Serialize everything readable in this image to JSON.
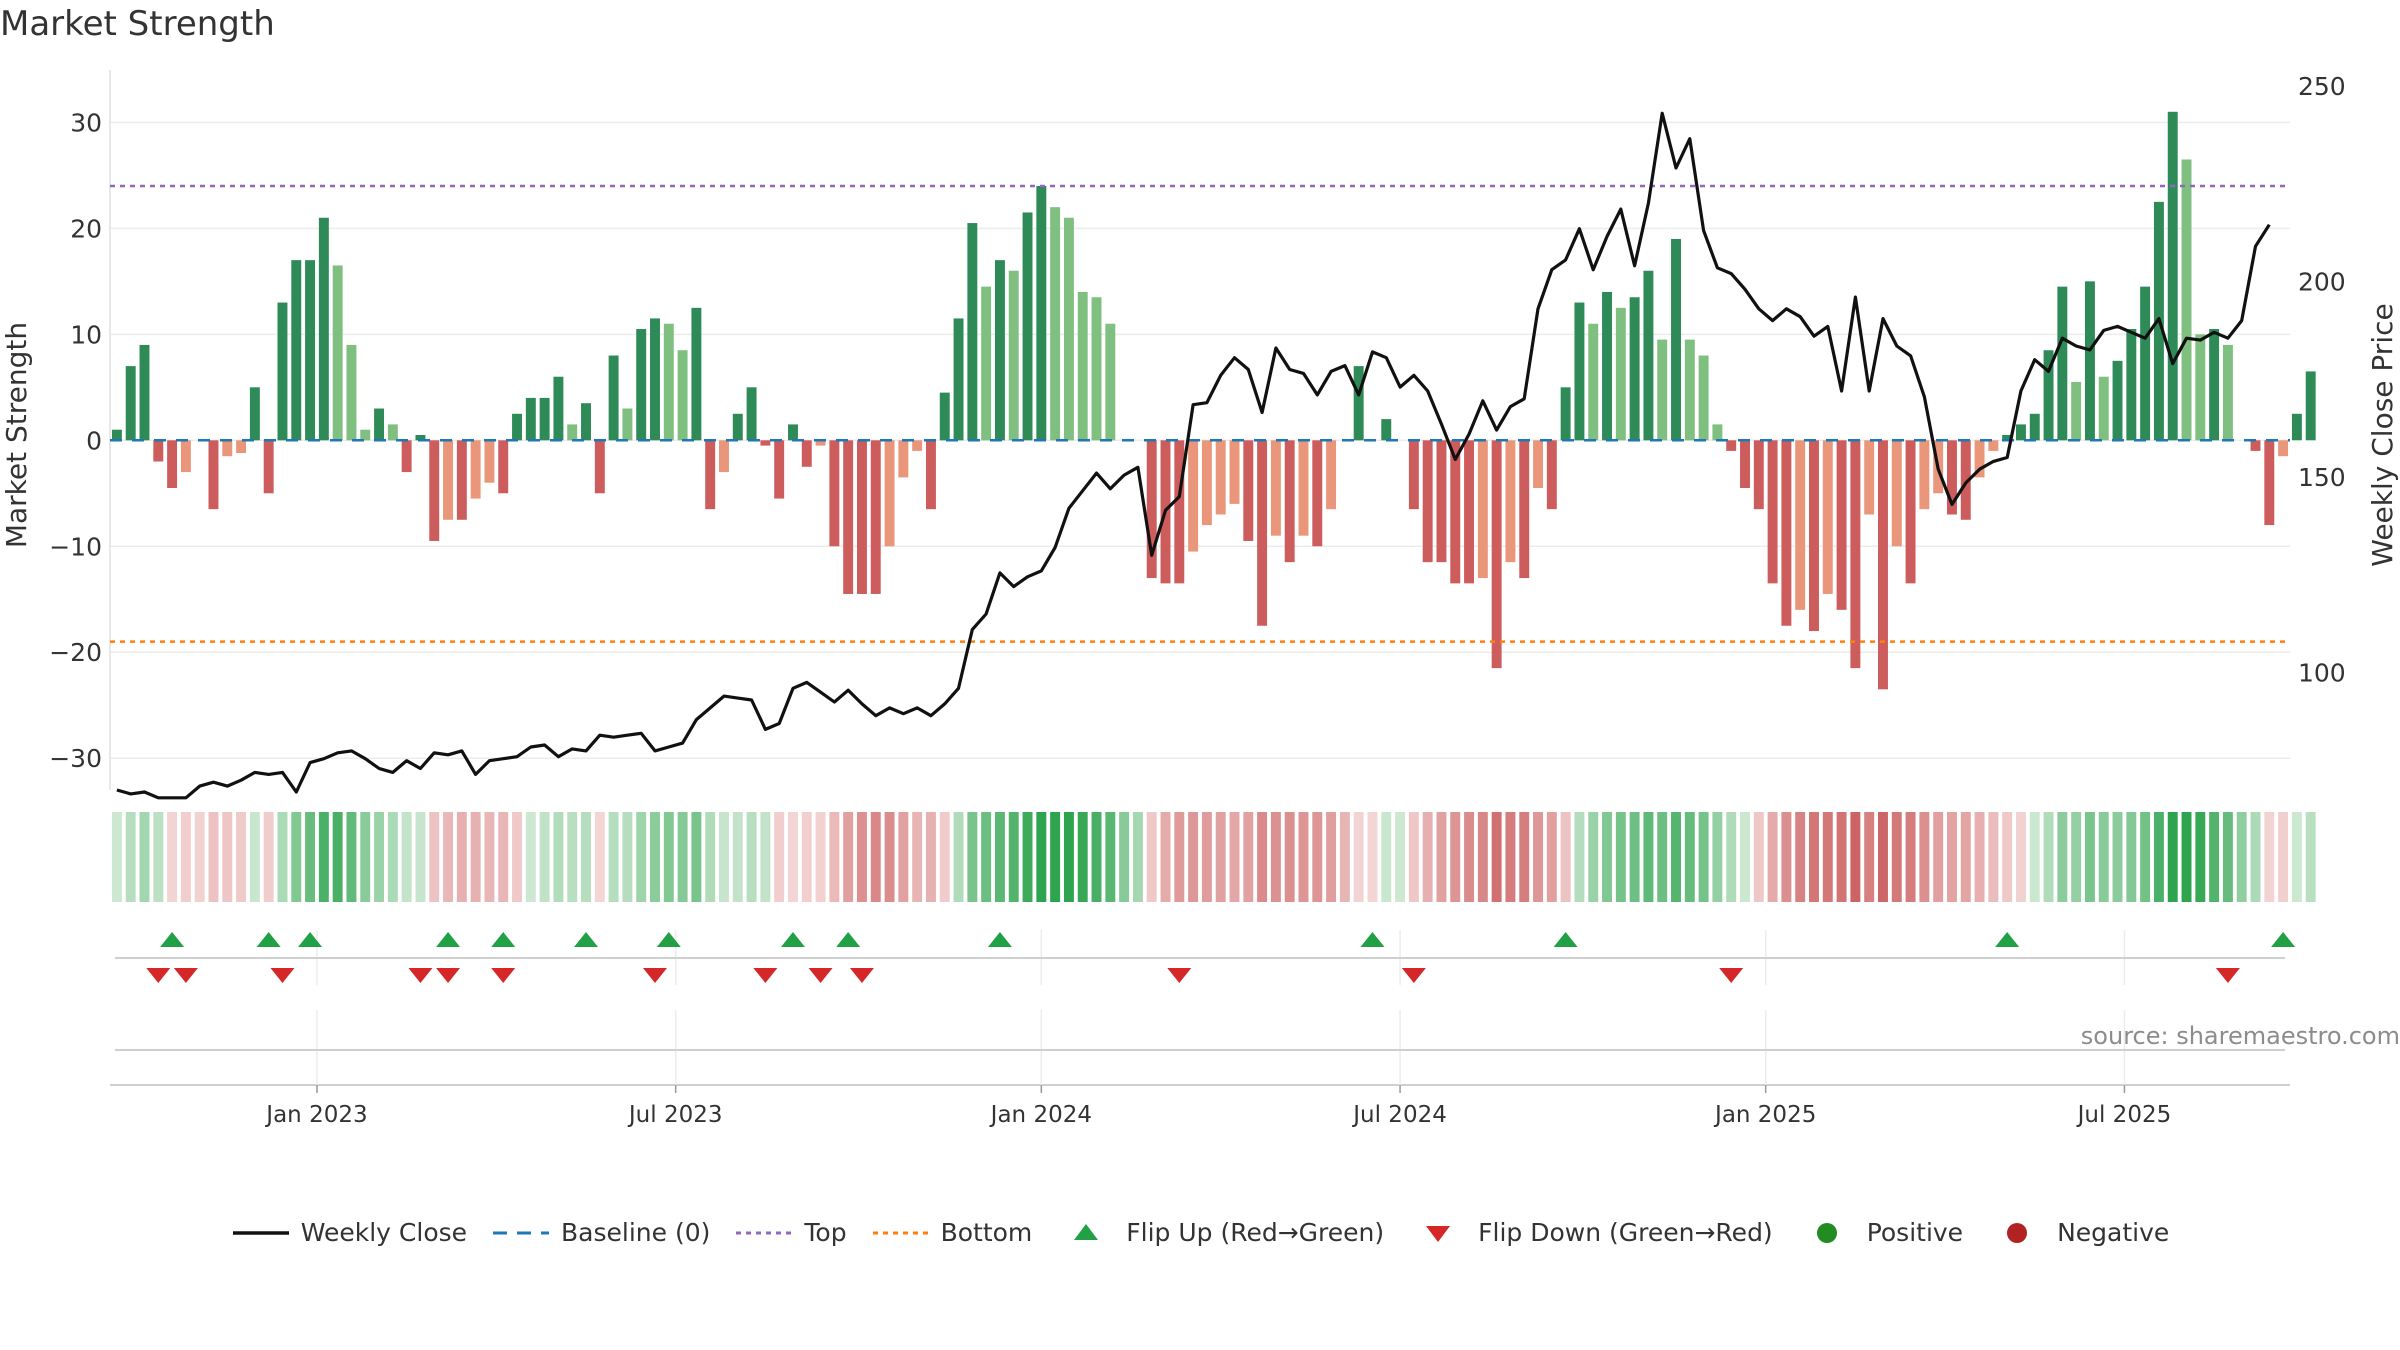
{
  "title": "Market Strength",
  "source": "source: sharemaestro.com",
  "colors": {
    "pos_strong": "#2e8b57",
    "pos_light": "#7fbf7f",
    "neg_strong": "#cd5c5c",
    "neg_light": "#e9967a",
    "price": "#111111",
    "baseline": "#1f77b4",
    "top": "#9467bd",
    "bottom": "#ff7f0e",
    "flip_up": "#22a046",
    "flip_down": "#d62728",
    "positive": "#228b22",
    "negative": "#b22222"
  },
  "legend": [
    {
      "kind": "line",
      "label": "Weekly Close"
    },
    {
      "kind": "dash",
      "label": "Baseline (0)"
    },
    {
      "kind": "dot-top",
      "label": "Top"
    },
    {
      "kind": "dot-bottom",
      "label": "Bottom"
    },
    {
      "kind": "tri-up",
      "label": "Flip Up (Red→Green)"
    },
    {
      "kind": "tri-down",
      "label": "Flip Down (Green→Red)"
    },
    {
      "kind": "circ-pos",
      "label": "Positive"
    },
    {
      "kind": "circ-neg",
      "label": "Negative"
    }
  ],
  "chart_data": {
    "type": "bar",
    "title": "Market Strength",
    "ylabel": "Market Strength",
    "ylabel_right": "Weekly Close Price",
    "ylim": [
      -33,
      34
    ],
    "yticks": [
      30,
      20,
      10,
      0,
      -10,
      -20,
      -30
    ],
    "ytick_labels": [
      "30",
      "20",
      "10",
      "0",
      "−10",
      "−20",
      "−30"
    ],
    "ylim_right": [
      70,
      251.5
    ],
    "yticks_right": [
      250,
      200,
      150,
      100
    ],
    "ytick_labels_right": [
      "250",
      "200",
      "150",
      "100"
    ],
    "top_level": 24,
    "bottom_level": -19,
    "baseline": 0,
    "x_range": [
      0,
      158
    ],
    "xticks": [
      {
        "label": "Jan 2023",
        "week": 15
      },
      {
        "label": "Jul 2023",
        "week": 41
      },
      {
        "label": "Jan 2024",
        "week": 67.5
      },
      {
        "label": "Jul 2024",
        "week": 93.5
      },
      {
        "label": "Jan 2025",
        "week": 120
      },
      {
        "label": "Jul 2025",
        "week": 146
      }
    ],
    "strength": [
      1,
      7,
      9,
      -2,
      -4.5,
      -3,
      0,
      -6.5,
      -1.5,
      -1.2,
      5,
      -5,
      13,
      17,
      17,
      21,
      16.5,
      9,
      1,
      3,
      1.5,
      -3,
      0.5,
      -9.5,
      -7.5,
      -7.5,
      -5.5,
      -4,
      -5,
      2.5,
      4,
      4,
      6,
      1.5,
      3.5,
      -5,
      8,
      3,
      10.5,
      11.5,
      11,
      8.5,
      12.5,
      -6.5,
      -3,
      2.5,
      5,
      -0.5,
      -5.5,
      1.5,
      -2.5,
      -0.5,
      -10,
      -14.5,
      -14.5,
      -14.5,
      -10,
      -3.5,
      -1,
      -6.5,
      4.5,
      11.5,
      20.5,
      14.5,
      17,
      16,
      21.5,
      24,
      22,
      21,
      14,
      13.5,
      11,
      0,
      0,
      -13,
      -13.5,
      -13.5,
      -10.5,
      -8,
      -7,
      -6,
      -9.5,
      -17.5,
      -9,
      -11.5,
      -9,
      -10,
      -6.5,
      0,
      7,
      0,
      2,
      0,
      -6.5,
      -11.5,
      -11.5,
      -13.5,
      -13.5,
      -13,
      -21.5,
      -11.5,
      -13,
      -4.5,
      -6.5,
      5,
      13,
      11,
      14,
      12.5,
      13.5,
      16,
      9.5,
      19,
      9.5,
      8,
      1.5,
      -1,
      -4.5,
      -6.5,
      -13.5,
      -17.5,
      -16,
      -18,
      -14.5,
      -16,
      -21.5,
      -7,
      -23.5,
      -10,
      -13.5,
      -6.5,
      -5,
      -7,
      -7.5,
      -3.5,
      -1,
      0.5,
      1.5,
      2.5,
      8.5,
      14.5,
      5.5,
      15,
      6,
      7.5,
      10.5,
      14.5,
      22.5,
      31,
      26.5,
      10,
      10.5,
      9,
      0,
      -1,
      -8,
      -1.5,
      2.5,
      6.5
    ],
    "close": [
      70,
      69,
      69.5,
      68,
      68,
      68,
      71,
      72,
      71,
      72.5,
      74.5,
      74,
      74.5,
      69.5,
      77,
      78,
      79.5,
      80,
      78,
      75.5,
      74.5,
      77.5,
      75.5,
      79.5,
      79,
      80,
      74,
      77.5,
      78,
      78.5,
      81,
      81.5,
      78.5,
      80.5,
      80,
      84,
      83.5,
      84,
      84.5,
      80,
      81,
      82,
      88,
      91,
      94,
      93.5,
      93,
      85.5,
      87,
      96,
      97.5,
      95,
      92.5,
      95.5,
      92,
      89,
      91,
      89.5,
      91,
      89,
      92,
      96,
      111,
      115,
      125.5,
      122,
      124.5,
      126,
      132,
      142,
      146.5,
      151,
      147,
      150.5,
      152.5,
      130,
      141.5,
      145,
      168.5,
      169,
      176,
      180.5,
      177.5,
      166.5,
      183,
      177.5,
      176.5,
      171,
      177,
      178.5,
      171,
      182,
      180.5,
      173,
      176,
      172,
      163.5,
      154.5,
      161,
      169.5,
      162,
      168,
      170,
      193,
      203,
      205.5,
      213.5,
      203,
      211.5,
      218.5,
      204,
      220,
      243,
      229,
      236.5,
      213,
      203.5,
      202,
      198,
      193,
      190,
      193,
      191,
      186,
      188.5,
      172,
      196,
      172,
      190.5,
      183.5,
      181,
      170.5,
      152,
      143,
      148.5,
      152,
      154,
      155,
      172,
      180,
      177,
      185.5,
      183.5,
      182.5,
      187.5,
      188.5,
      187,
      185.5,
      190.5,
      179,
      185.5,
      185,
      187,
      185.5,
      190,
      209,
      214.5
    ],
    "flip_up_weeks": [
      4,
      11,
      14,
      24,
      28,
      34,
      40,
      49,
      53,
      64,
      91,
      105,
      137,
      157
    ],
    "flip_down_weeks": [
      3,
      5,
      12,
      22,
      24,
      28,
      39,
      47,
      51,
      54,
      77,
      94,
      117,
      153
    ]
  }
}
